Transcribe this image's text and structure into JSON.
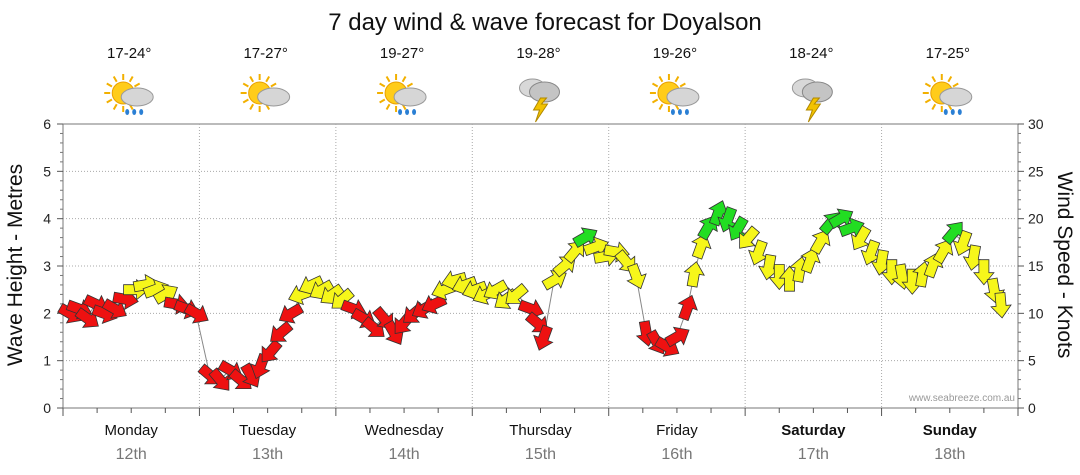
{
  "chart_data": {
    "type": "line",
    "title": "7 day wind & wave forecast for Doyalson",
    "ylabel": "Wave Height - Metres",
    "y2label": "Wind Speed - Knots",
    "ylim": [
      0,
      6
    ],
    "y2lim": [
      0,
      30
    ],
    "yticks": [
      "0",
      "1",
      "2",
      "3",
      "4",
      "5",
      "6"
    ],
    "y2ticks": [
      "0",
      "5",
      "10",
      "15",
      "20",
      "25",
      "30"
    ],
    "watermark": "www.seabreeze.com.au",
    "days": [
      {
        "day": "Monday",
        "date": "12th",
        "temp": "17-24°",
        "icon": "sun-rain-icon",
        "bold": false
      },
      {
        "day": "Tuesday",
        "date": "13th",
        "temp": "17-27°",
        "icon": "sun-cloud-icon",
        "bold": false
      },
      {
        "day": "Wednesday",
        "date": "14th",
        "temp": "19-27°",
        "icon": "sun-rain-icon",
        "bold": false
      },
      {
        "day": "Thursday",
        "date": "15th",
        "temp": "19-28°",
        "icon": "storm-icon",
        "bold": false
      },
      {
        "day": "Friday",
        "date": "16th",
        "temp": "19-26°",
        "icon": "sun-rain-icon",
        "bold": false
      },
      {
        "day": "Saturday",
        "date": "17th",
        "temp": "18-24°",
        "icon": "storm-icon",
        "bold": true
      },
      {
        "day": "Sunday",
        "date": "18th",
        "temp": "17-25°",
        "icon": "sun-rain-icon",
        "bold": true
      }
    ],
    "colors": {
      "red": "#ee1111",
      "yellow": "#f6f61a",
      "green": "#22dd22",
      "outline": "#333333",
      "grid": "#aaaaaa"
    },
    "series": [
      {
        "name": "wind",
        "points": [
          {
            "t": 0.2,
            "v": 2.0,
            "c": "red",
            "dir": 120
          },
          {
            "t": 0.45,
            "v": 2.1,
            "c": "red",
            "dir": 110
          },
          {
            "t": 0.7,
            "v": 1.9,
            "c": "red",
            "dir": 125
          },
          {
            "t": 0.95,
            "v": 2.2,
            "c": "red",
            "dir": 115
          },
          {
            "t": 1.2,
            "v": 2.0,
            "c": "red",
            "dir": 110
          },
          {
            "t": 1.5,
            "v": 2.1,
            "c": "red",
            "dir": 120
          },
          {
            "t": 1.8,
            "v": 2.3,
            "c": "red",
            "dir": 100
          },
          {
            "t": 2.1,
            "v": 2.5,
            "c": "yellow",
            "dir": 90
          },
          {
            "t": 2.4,
            "v": 2.6,
            "c": "yellow",
            "dir": 80
          },
          {
            "t": 2.7,
            "v": 2.5,
            "c": "yellow",
            "dir": 70
          },
          {
            "t": 3.0,
            "v": 2.4,
            "c": "yellow",
            "dir": 60
          },
          {
            "t": 3.3,
            "v": 2.2,
            "c": "red",
            "dir": 100
          },
          {
            "t": 3.6,
            "v": 2.1,
            "c": "red",
            "dir": 110
          },
          {
            "t": 3.9,
            "v": 2.0,
            "c": "red",
            "dir": 120
          },
          {
            "t": 4.3,
            "v": 0.7,
            "c": "red",
            "dir": 130
          },
          {
            "t": 4.6,
            "v": 0.6,
            "c": "red",
            "dir": 140
          },
          {
            "t": 4.9,
            "v": 0.8,
            "c": "red",
            "dir": 120
          },
          {
            "t": 5.2,
            "v": 0.6,
            "c": "red",
            "dir": 130
          },
          {
            "t": 5.5,
            "v": 0.7,
            "c": "red",
            "dir": 150
          },
          {
            "t": 5.8,
            "v": 0.9,
            "c": "red",
            "dir": 200
          },
          {
            "t": 6.1,
            "v": 1.2,
            "c": "red",
            "dir": 220
          },
          {
            "t": 6.4,
            "v": 1.6,
            "c": "red",
            "dir": 230
          },
          {
            "t": 6.7,
            "v": 2.0,
            "c": "red",
            "dir": 240
          },
          {
            "t": 7.0,
            "v": 2.4,
            "c": "yellow",
            "dir": 250
          },
          {
            "t": 7.3,
            "v": 2.6,
            "c": "yellow",
            "dir": 245
          },
          {
            "t": 7.6,
            "v": 2.5,
            "c": "yellow",
            "dir": 240
          },
          {
            "t": 7.9,
            "v": 2.4,
            "c": "yellow",
            "dir": 235
          },
          {
            "t": 8.2,
            "v": 2.3,
            "c": "yellow",
            "dir": 230
          },
          {
            "t": 8.5,
            "v": 2.1,
            "c": "red",
            "dir": 110
          },
          {
            "t": 8.8,
            "v": 1.9,
            "c": "red",
            "dir": 120
          },
          {
            "t": 9.1,
            "v": 1.7,
            "c": "red",
            "dir": 130
          },
          {
            "t": 9.4,
            "v": 1.9,
            "c": "red",
            "dir": 140
          },
          {
            "t": 9.7,
            "v": 1.6,
            "c": "red",
            "dir": 150
          },
          {
            "t": 10.0,
            "v": 1.8,
            "c": "red",
            "dir": 220
          },
          {
            "t": 10.3,
            "v": 2.0,
            "c": "red",
            "dir": 230
          },
          {
            "t": 10.6,
            "v": 2.1,
            "c": "red",
            "dir": 240
          },
          {
            "t": 10.9,
            "v": 2.2,
            "c": "red",
            "dir": 245
          },
          {
            "t": 11.2,
            "v": 2.5,
            "c": "yellow",
            "dir": 250
          },
          {
            "t": 11.5,
            "v": 2.7,
            "c": "yellow",
            "dir": 255
          },
          {
            "t": 11.8,
            "v": 2.6,
            "c": "yellow",
            "dir": 250
          },
          {
            "t": 12.1,
            "v": 2.5,
            "c": "yellow",
            "dir": 250
          },
          {
            "t": 12.4,
            "v": 2.4,
            "c": "yellow",
            "dir": 245
          },
          {
            "t": 12.7,
            "v": 2.5,
            "c": "yellow",
            "dir": 240
          },
          {
            "t": 13.0,
            "v": 2.3,
            "c": "yellow",
            "dir": 235
          },
          {
            "t": 13.3,
            "v": 2.4,
            "c": "yellow",
            "dir": 230
          },
          {
            "t": 13.7,
            "v": 2.1,
            "c": "red",
            "dir": 110
          },
          {
            "t": 13.9,
            "v": 1.8,
            "c": "red",
            "dir": 130
          },
          {
            "t": 14.1,
            "v": 1.5,
            "c": "red",
            "dir": 200
          },
          {
            "t": 14.4,
            "v": 2.7,
            "c": "yellow",
            "dir": 60
          },
          {
            "t": 14.7,
            "v": 3.0,
            "c": "yellow",
            "dir": 50
          },
          {
            "t": 15.0,
            "v": 3.3,
            "c": "yellow",
            "dir": 40
          },
          {
            "t": 15.3,
            "v": 3.6,
            "c": "green",
            "dir": 60
          },
          {
            "t": 15.6,
            "v": 3.4,
            "c": "yellow",
            "dir": 70
          },
          {
            "t": 15.9,
            "v": 3.2,
            "c": "yellow",
            "dir": 80
          },
          {
            "t": 16.2,
            "v": 3.3,
            "c": "yellow",
            "dir": 100
          },
          {
            "t": 16.5,
            "v": 3.1,
            "c": "yellow",
            "dir": 140
          },
          {
            "t": 16.8,
            "v": 2.8,
            "c": "yellow",
            "dir": 160
          },
          {
            "t": 17.1,
            "v": 1.6,
            "c": "red",
            "dir": 170
          },
          {
            "t": 17.4,
            "v": 1.4,
            "c": "red",
            "dir": 150
          },
          {
            "t": 17.7,
            "v": 1.3,
            "c": "red",
            "dir": 120
          },
          {
            "t": 18.0,
            "v": 1.5,
            "c": "red",
            "dir": 60
          },
          {
            "t": 18.3,
            "v": 2.1,
            "c": "red",
            "dir": 20
          },
          {
            "t": 18.5,
            "v": 2.8,
            "c": "yellow",
            "dir": 10
          },
          {
            "t": 18.7,
            "v": 3.4,
            "c": "yellow",
            "dir": 20
          },
          {
            "t": 18.9,
            "v": 3.8,
            "c": "green",
            "dir": 30
          },
          {
            "t": 19.2,
            "v": 4.1,
            "c": "green",
            "dir": 20
          },
          {
            "t": 19.5,
            "v": 4.0,
            "c": "green",
            "dir": 200
          },
          {
            "t": 19.8,
            "v": 3.8,
            "c": "green",
            "dir": 210
          },
          {
            "t": 20.1,
            "v": 3.6,
            "c": "yellow",
            "dir": 220
          },
          {
            "t": 20.4,
            "v": 3.3,
            "c": "yellow",
            "dir": 200
          },
          {
            "t": 20.7,
            "v": 3.0,
            "c": "yellow",
            "dir": 190
          },
          {
            "t": 21.0,
            "v": 2.8,
            "c": "yellow",
            "dir": 180
          },
          {
            "t": 21.3,
            "v": 2.7,
            "c": "yellow",
            "dir": 0
          },
          {
            "t": 21.6,
            "v": 2.9,
            "c": "yellow",
            "dir": 10
          },
          {
            "t": 21.9,
            "v": 3.1,
            "c": "yellow",
            "dir": 20
          },
          {
            "t": 22.2,
            "v": 3.5,
            "c": "yellow",
            "dir": 30
          },
          {
            "t": 22.5,
            "v": 3.9,
            "c": "green",
            "dir": 40
          },
          {
            "t": 22.8,
            "v": 4.0,
            "c": "green",
            "dir": 60
          },
          {
            "t": 23.1,
            "v": 3.8,
            "c": "green",
            "dir": 70
          },
          {
            "t": 23.4,
            "v": 3.6,
            "c": "yellow",
            "dir": 210
          },
          {
            "t": 23.7,
            "v": 3.3,
            "c": "yellow",
            "dir": 200
          },
          {
            "t": 24.0,
            "v": 3.1,
            "c": "yellow",
            "dir": 190
          },
          {
            "t": 24.3,
            "v": 2.9,
            "c": "yellow",
            "dir": 180
          },
          {
            "t": 24.6,
            "v": 2.8,
            "c": "yellow",
            "dir": 170
          },
          {
            "t": 24.9,
            "v": 2.7,
            "c": "yellow",
            "dir": 180
          },
          {
            "t": 25.2,
            "v": 2.8,
            "c": "yellow",
            "dir": 10
          },
          {
            "t": 25.5,
            "v": 3.0,
            "c": "yellow",
            "dir": 20
          },
          {
            "t": 25.8,
            "v": 3.3,
            "c": "yellow",
            "dir": 30
          },
          {
            "t": 26.1,
            "v": 3.7,
            "c": "green",
            "dir": 40
          },
          {
            "t": 26.4,
            "v": 3.5,
            "c": "yellow",
            "dir": 200
          },
          {
            "t": 26.7,
            "v": 3.2,
            "c": "yellow",
            "dir": 190
          },
          {
            "t": 27.0,
            "v": 2.9,
            "c": "yellow",
            "dir": 180
          },
          {
            "t": 27.3,
            "v": 2.5,
            "c": "yellow",
            "dir": 170
          },
          {
            "t": 27.5,
            "v": 2.2,
            "c": "yellow",
            "dir": 175
          }
        ]
      }
    ]
  }
}
